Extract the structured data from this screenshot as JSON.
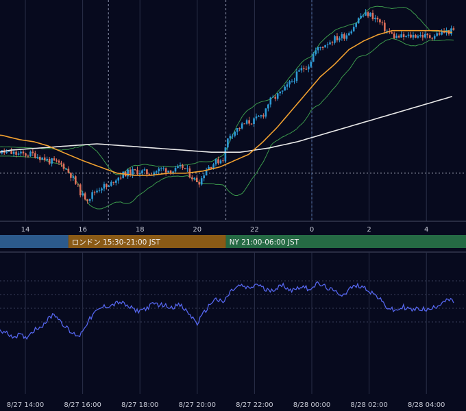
{
  "theme": {
    "background": "#070a1e",
    "grid": "#2a2f48",
    "axis_text": "#c7cad6",
    "candle_up": "#2e9bd6",
    "candle_down": "#e0705a",
    "ma_short": "#f0a030",
    "ma_long": "#e8e8e8",
    "bollinger": "#3c9a4c",
    "oscillator": "#5566ee"
  },
  "sessions": [
    {
      "label": "",
      "color": "#2c5a8c",
      "start_hour": 12.5,
      "end_hour": 15.5
    },
    {
      "label": "ロンドン 15:30-21:00 JST",
      "color": "#8a5a16",
      "start_hour": 15.5,
      "end_hour": 21.0
    },
    {
      "label": "NY 21:00-06:00 JST",
      "color": "#256a44",
      "start_hour": 21.0,
      "end_hour": 29.5
    }
  ],
  "chart_data": [
    {
      "type": "candlestick",
      "x_unit": "hour (JST, 8/27 00:00 = 0)",
      "x_range": [
        12.6,
        29.0
      ],
      "y_range": [
        0,
        100
      ],
      "grid": true,
      "tick_labels": [
        {
          "hour": 14,
          "label": "14"
        },
        {
          "hour": 16,
          "label": "16"
        },
        {
          "hour": 18,
          "label": "18"
        },
        {
          "hour": 20,
          "label": "20"
        },
        {
          "hour": 22,
          "label": "22"
        },
        {
          "hour": 24,
          "label": "0"
        },
        {
          "hour": 26,
          "label": "2"
        },
        {
          "hour": 28,
          "label": "4"
        }
      ],
      "reference_level": 20,
      "price_path": [
        [
          12.6,
          31
        ],
        [
          13.2,
          30
        ],
        [
          13.8,
          29
        ],
        [
          14.3,
          29
        ],
        [
          14.8,
          26
        ],
        [
          15.3,
          24
        ],
        [
          15.6,
          19
        ],
        [
          15.8,
          14
        ],
        [
          16.0,
          9
        ],
        [
          16.2,
          8
        ],
        [
          16.4,
          11
        ],
        [
          16.7,
          14
        ],
        [
          16.9,
          13
        ],
        [
          17.1,
          17
        ],
        [
          17.5,
          20
        ],
        [
          17.9,
          21
        ],
        [
          18.3,
          20
        ],
        [
          18.8,
          22
        ],
        [
          19.2,
          21
        ],
        [
          19.5,
          23
        ],
        [
          19.9,
          17
        ],
        [
          20.1,
          16
        ],
        [
          20.3,
          22
        ],
        [
          20.6,
          25
        ],
        [
          20.9,
          27
        ],
        [
          21.1,
          38
        ],
        [
          21.4,
          41
        ],
        [
          21.7,
          44
        ],
        [
          22.0,
          45
        ],
        [
          22.3,
          48
        ],
        [
          22.5,
          54
        ],
        [
          22.8,
          57
        ],
        [
          23.0,
          59
        ],
        [
          23.3,
          64
        ],
        [
          23.6,
          69
        ],
        [
          23.9,
          72
        ],
        [
          24.1,
          78
        ],
        [
          24.5,
          82
        ],
        [
          24.8,
          84
        ],
        [
          25.2,
          86
        ],
        [
          25.5,
          91
        ],
        [
          25.7,
          95
        ],
        [
          26.0,
          96
        ],
        [
          26.3,
          93
        ],
        [
          26.6,
          88
        ],
        [
          26.9,
          85
        ],
        [
          27.3,
          85
        ],
        [
          27.7,
          86
        ],
        [
          28.1,
          85
        ],
        [
          28.5,
          87
        ],
        [
          29.0,
          88
        ]
      ],
      "ma_short_path": [
        [
          12.6,
          39
        ],
        [
          13.2,
          38
        ],
        [
          13.8,
          36
        ],
        [
          14.3,
          35
        ],
        [
          14.8,
          33
        ],
        [
          15.3,
          30
        ],
        [
          16.0,
          26
        ],
        [
          16.6,
          23
        ],
        [
          17.2,
          20
        ],
        [
          17.8,
          19
        ],
        [
          18.4,
          19
        ],
        [
          19.0,
          20
        ],
        [
          19.6,
          20
        ],
        [
          20.2,
          21
        ],
        [
          20.8,
          23
        ],
        [
          21.3,
          26
        ],
        [
          21.8,
          29
        ],
        [
          22.3,
          35
        ],
        [
          22.8,
          42
        ],
        [
          23.3,
          50
        ],
        [
          23.8,
          58
        ],
        [
          24.3,
          66
        ],
        [
          24.8,
          72
        ],
        [
          25.3,
          79
        ],
        [
          25.8,
          83
        ],
        [
          26.3,
          86
        ],
        [
          26.8,
          88
        ],
        [
          27.3,
          88
        ],
        [
          27.8,
          88
        ],
        [
          28.4,
          88
        ],
        [
          29.0,
          87
        ]
      ],
      "ma_long_path": [
        [
          12.6,
          29
        ],
        [
          13.5,
          31
        ],
        [
          14.5,
          32
        ],
        [
          15.5,
          33
        ],
        [
          16.5,
          34
        ],
        [
          17.5,
          33
        ],
        [
          18.5,
          32
        ],
        [
          19.5,
          31
        ],
        [
          20.5,
          30
        ],
        [
          21.5,
          30
        ],
        [
          22.5,
          32
        ],
        [
          23.5,
          35
        ],
        [
          24.5,
          39
        ],
        [
          25.5,
          43
        ],
        [
          26.5,
          47
        ],
        [
          27.5,
          51
        ],
        [
          28.5,
          55
        ],
        [
          29.0,
          57
        ]
      ]
    },
    {
      "type": "line",
      "x_unit": "hour (JST, 8/27 00:00 = 0)",
      "x_range": [
        12.6,
        29.0
      ],
      "y_range": [
        0,
        100
      ],
      "grid": true,
      "tick_labels": [
        {
          "hour": 14,
          "label": "8/27 14:00"
        },
        {
          "hour": 16,
          "label": "8/27 16:00"
        },
        {
          "hour": 18,
          "label": "8/27 18:00"
        },
        {
          "hour": 20,
          "label": "8/27 20:00"
        },
        {
          "hour": 22,
          "label": "8/27 22:00"
        },
        {
          "hour": 24,
          "label": "8/28 00:00"
        },
        {
          "hour": 26,
          "label": "8/28 02:00"
        },
        {
          "hour": 28,
          "label": "8/28 04:00"
        }
      ],
      "values_path": [
        [
          12.6,
          38
        ],
        [
          12.8,
          40
        ],
        [
          13.0,
          36
        ],
        [
          13.2,
          30
        ],
        [
          13.4,
          27
        ],
        [
          13.6,
          24
        ],
        [
          13.8,
          26
        ],
        [
          14.0,
          22
        ],
        [
          14.3,
          32
        ],
        [
          14.6,
          38
        ],
        [
          14.8,
          45
        ],
        [
          15.0,
          52
        ],
        [
          15.3,
          40
        ],
        [
          15.6,
          28
        ],
        [
          15.9,
          25
        ],
        [
          16.1,
          38
        ],
        [
          16.4,
          52
        ],
        [
          16.7,
          60
        ],
        [
          17.0,
          62
        ],
        [
          17.3,
          66
        ],
        [
          17.6,
          60
        ],
        [
          17.9,
          55
        ],
        [
          18.2,
          58
        ],
        [
          18.5,
          64
        ],
        [
          18.8,
          62
        ],
        [
          19.1,
          60
        ],
        [
          19.4,
          62
        ],
        [
          19.7,
          52
        ],
        [
          20.0,
          40
        ],
        [
          20.3,
          56
        ],
        [
          20.6,
          70
        ],
        [
          20.9,
          65
        ],
        [
          21.2,
          80
        ],
        [
          21.5,
          86
        ],
        [
          21.8,
          82
        ],
        [
          22.1,
          88
        ],
        [
          22.4,
          80
        ],
        [
          22.7,
          82
        ],
        [
          23.0,
          86
        ],
        [
          23.3,
          80
        ],
        [
          23.6,
          85
        ],
        [
          23.9,
          82
        ],
        [
          24.2,
          88
        ],
        [
          24.5,
          84
        ],
        [
          24.8,
          78
        ],
        [
          25.1,
          75
        ],
        [
          25.4,
          84
        ],
        [
          25.7,
          86
        ],
        [
          26.0,
          80
        ],
        [
          26.3,
          72
        ],
        [
          26.6,
          60
        ],
        [
          26.9,
          55
        ],
        [
          27.2,
          60
        ],
        [
          27.5,
          56
        ],
        [
          27.8,
          58
        ],
        [
          28.1,
          56
        ],
        [
          28.4,
          62
        ],
        [
          28.7,
          70
        ],
        [
          29.0,
          65
        ]
      ]
    }
  ]
}
